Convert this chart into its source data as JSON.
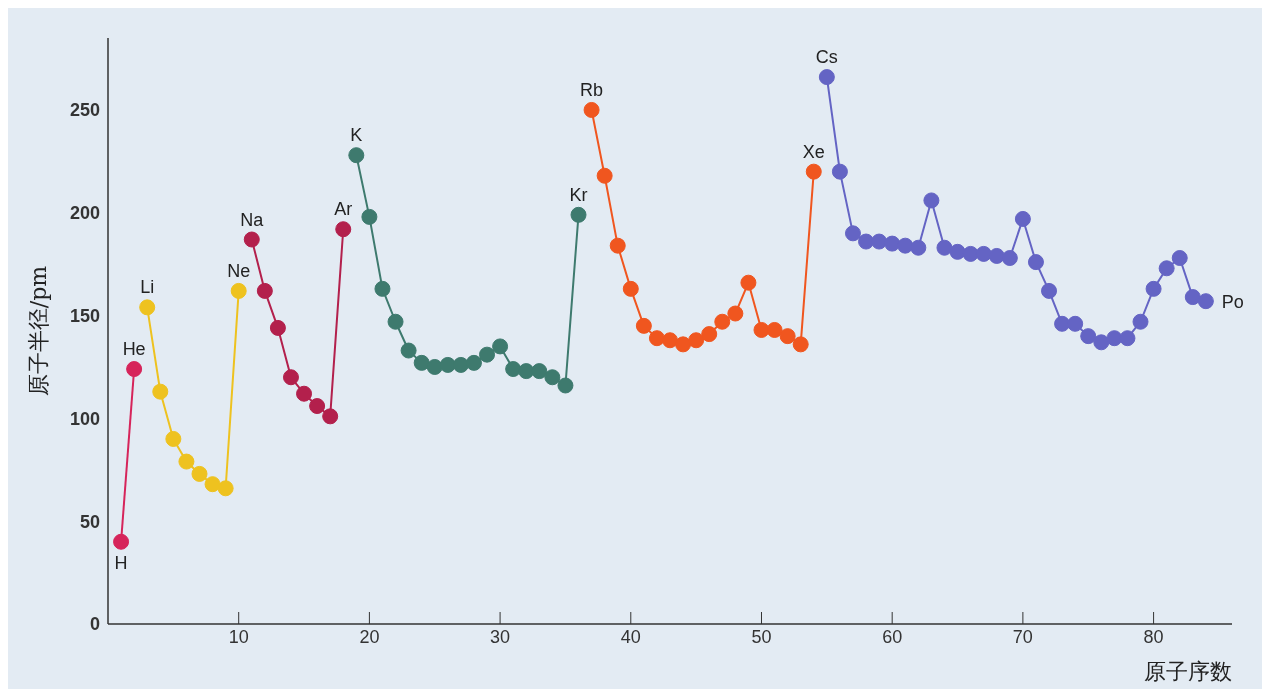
{
  "chart_data": {
    "type": "line",
    "xlabel": "原子序数",
    "ylabel": "原子半径/pm",
    "xlim": [
      0,
      86
    ],
    "xticks": [
      10,
      20,
      30,
      40,
      50,
      60,
      70,
      80
    ],
    "ylim": [
      0,
      285
    ],
    "yticks": [
      0,
      50,
      100,
      150,
      200,
      250
    ],
    "marker": "circle",
    "line_style": "solid",
    "series": [
      {
        "color": "#d6245a",
        "x": [
          1,
          2
        ],
        "values": [
          40,
          124
        ]
      },
      {
        "color": "#eec21f",
        "x": [
          3,
          4,
          5,
          6,
          7,
          8,
          9,
          10
        ],
        "values": [
          154,
          113,
          90,
          79,
          73,
          68,
          66,
          162
        ]
      },
      {
        "color": "#b3204c",
        "x": [
          11,
          12,
          13,
          14,
          15,
          16,
          17,
          18
        ],
        "values": [
          187,
          162,
          144,
          120,
          112,
          106,
          101,
          192
        ]
      },
      {
        "color": "#3e7a6e",
        "x": [
          19,
          20,
          21,
          22,
          23,
          24,
          25,
          26,
          27,
          28,
          29,
          30,
          31,
          32,
          33,
          34,
          35,
          36
        ],
        "values": [
          228,
          198,
          163,
          147,
          133,
          127,
          125,
          126,
          126,
          127,
          131,
          135,
          124,
          123,
          123,
          120,
          116,
          199
        ]
      },
      {
        "color": "#f0561f",
        "x": [
          37,
          38,
          39,
          40,
          41,
          42,
          43,
          44,
          45,
          46,
          47,
          48,
          49,
          50,
          51,
          52,
          53,
          54
        ],
        "values": [
          250,
          218,
          184,
          163,
          145,
          139,
          138,
          136,
          138,
          141,
          147,
          151,
          166,
          143,
          143,
          140,
          136,
          220
        ]
      },
      {
        "color": "#6464c4",
        "x": [
          55,
          56,
          57,
          58,
          59,
          60,
          61,
          62,
          63,
          64,
          65,
          66,
          67,
          68,
          69,
          70,
          71,
          72,
          73,
          74,
          75,
          76,
          77,
          78,
          79,
          80,
          81,
          82,
          83,
          84
        ],
        "values": [
          266,
          220,
          190,
          186,
          186,
          185,
          184,
          183,
          206,
          183,
          181,
          180,
          180,
          179,
          178,
          197,
          176,
          162,
          146,
          146,
          140,
          137,
          139,
          139,
          147,
          163,
          173,
          178,
          159,
          157
        ]
      }
    ],
    "annotations": [
      {
        "text": "H",
        "x": 1,
        "y": 40
      },
      {
        "text": "He",
        "x": 2,
        "y": 124
      },
      {
        "text": "Li",
        "x": 3,
        "y": 154
      },
      {
        "text": "Ne",
        "x": 10,
        "y": 162
      },
      {
        "text": "Na",
        "x": 11,
        "y": 187
      },
      {
        "text": "Ar",
        "x": 18,
        "y": 192
      },
      {
        "text": "K",
        "x": 19,
        "y": 228
      },
      {
        "text": "Kr",
        "x": 36,
        "y": 199
      },
      {
        "text": "Rb",
        "x": 37,
        "y": 250
      },
      {
        "text": "Xe",
        "x": 54,
        "y": 220
      },
      {
        "text": "Cs",
        "x": 55,
        "y": 266
      },
      {
        "text": "Po",
        "x": 84,
        "y": 157
      }
    ]
  }
}
